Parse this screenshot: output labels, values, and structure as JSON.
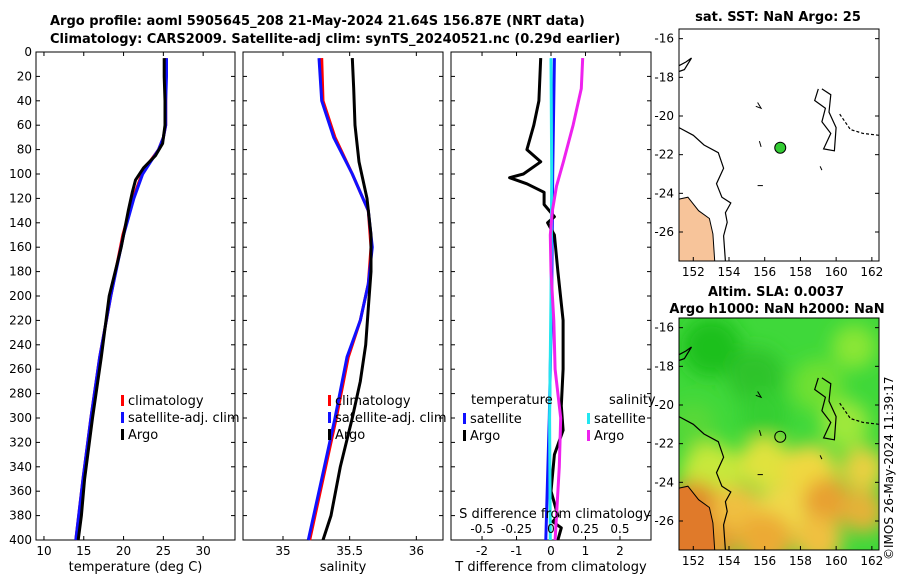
{
  "header": {
    "line1": "Argo profile: aoml 5905645_208 21-May-2024 21.64S 156.87E (NRT data)",
    "line2": "Climatology: CARS2009. Satellite-adj clim: synTS_20240521.nc (0.29d earlier)"
  },
  "credit": "©IMOS 26-May-2024 11:39:17",
  "colors": {
    "climatology": "#ff0000",
    "satellite": "#1010ff",
    "argo": "#000000",
    "sal_satellite": "#22e6f0",
    "sal_argo": "#ee22ee",
    "land": "#f7c49a"
  },
  "chart_data": [
    {
      "id": "temperature",
      "type": "line",
      "xlabel": "temperature (deg C)",
      "ylabel": "",
      "xlim": [
        9,
        34
      ],
      "ylim": [
        400,
        0
      ],
      "xticks": [
        "10",
        "15",
        "20",
        "25",
        "30"
      ],
      "yticks": [
        "0",
        "20",
        "40",
        "60",
        "80",
        "100",
        "120",
        "140",
        "160",
        "180",
        "200",
        "220",
        "240",
        "260",
        "280",
        "300",
        "320",
        "340",
        "360",
        "380",
        "400"
      ],
      "series": [
        {
          "name": "climatology",
          "color": "#ff0000",
          "depth": [
            5,
            20,
            40,
            60,
            70,
            80,
            90,
            100,
            120,
            150,
            200,
            250,
            300,
            350,
            400
          ],
          "values": [
            25.3,
            25.3,
            25.3,
            25.3,
            25.0,
            24.4,
            23.3,
            22.3,
            21.2,
            19.9,
            18.4,
            17.0,
            15.9,
            14.9,
            14.0
          ]
        },
        {
          "name": "satellite-adj. clim",
          "color": "#1010ff",
          "depth": [
            5,
            20,
            40,
            60,
            70,
            80,
            90,
            100,
            120,
            150,
            200,
            250,
            300,
            350,
            400
          ],
          "values": [
            25.4,
            25.4,
            25.3,
            25.3,
            25.0,
            24.4,
            23.4,
            22.4,
            21.3,
            20.0,
            18.4,
            17.0,
            15.9,
            14.9,
            14.0
          ]
        },
        {
          "name": "Argo",
          "color": "#000000",
          "depth": [
            5,
            20,
            40,
            60,
            75,
            85,
            95,
            105,
            115,
            130,
            160,
            200,
            250,
            300,
            350,
            380,
            400
          ],
          "values": [
            25.1,
            25.1,
            25.2,
            25.2,
            24.9,
            24.0,
            22.5,
            21.5,
            21.1,
            20.6,
            19.7,
            18.2,
            17.2,
            16.1,
            15.1,
            14.7,
            14.3
          ]
        }
      ],
      "legend": [
        "climatology",
        "satellite-adj. clim",
        "Argo"
      ]
    },
    {
      "id": "salinity",
      "type": "line",
      "xlabel": "salinity",
      "ylabel": "",
      "xlim": [
        34.7,
        36.2
      ],
      "ylim": [
        400,
        0
      ],
      "xticks": [
        "35",
        "35.5",
        "36"
      ],
      "series": [
        {
          "name": "climatology",
          "color": "#ff0000",
          "depth": [
            5,
            40,
            70,
            100,
            130,
            160,
            190,
            220,
            250,
            300,
            350,
            400
          ],
          "values": [
            35.29,
            35.3,
            35.39,
            35.52,
            35.64,
            35.66,
            35.64,
            35.58,
            35.49,
            35.4,
            35.3,
            35.2
          ]
        },
        {
          "name": "satellite-adj. clim",
          "color": "#1010ff",
          "depth": [
            5,
            40,
            70,
            100,
            130,
            160,
            190,
            220,
            250,
            300,
            350,
            400
          ],
          "values": [
            35.27,
            35.29,
            35.38,
            35.52,
            35.64,
            35.67,
            35.64,
            35.58,
            35.48,
            35.39,
            35.29,
            35.19
          ]
        },
        {
          "name": "Argo",
          "color": "#000000",
          "depth": [
            5,
            30,
            60,
            90,
            120,
            150,
            180,
            210,
            240,
            270,
            300,
            340,
            380,
            400
          ],
          "values": [
            35.52,
            35.53,
            35.54,
            35.57,
            35.63,
            35.66,
            35.66,
            35.64,
            35.62,
            35.58,
            35.52,
            35.43,
            35.36,
            35.3
          ]
        }
      ],
      "legend": [
        "climatology",
        "satellite-adj. clim",
        "Argo"
      ]
    },
    {
      "id": "difference",
      "type": "line",
      "xlabel": "T difference from climatology",
      "xlabel_top": "S difference from climatology",
      "xlim": [
        -2.9,
        2.9
      ],
      "ylim": [
        400,
        0
      ],
      "xticks": [
        "-2",
        "-1",
        "0",
        "1",
        "2"
      ],
      "xticks_top": [
        "-0.5",
        "-0.25",
        "0",
        "0.25",
        "0.5"
      ],
      "series": [
        {
          "name": "temperature satellite",
          "color": "#1010ff",
          "depth": [
            5,
            100,
            200,
            300,
            400
          ],
          "values": [
            0.1,
            0.05,
            0.02,
            -0.05,
            -0.15
          ]
        },
        {
          "name": "temperature Argo",
          "color": "#000000",
          "depth": [
            5,
            40,
            60,
            80,
            90,
            100,
            103,
            108,
            115,
            125,
            135,
            140,
            150,
            180,
            220,
            260,
            290,
            310,
            330,
            360,
            380,
            385,
            390,
            400
          ],
          "values": [
            -0.3,
            -0.35,
            -0.5,
            -0.7,
            -0.3,
            -0.8,
            -1.2,
            -0.7,
            -0.2,
            -0.2,
            0.1,
            -0.1,
            0.1,
            0.2,
            0.35,
            0.35,
            0.3,
            0.35,
            0.1,
            0.0,
            0.2,
            0.05,
            0.3,
            0.2
          ]
        },
        {
          "name": "salinity satellite",
          "color": "#22e6f0",
          "depth": [
            5,
            100,
            200,
            300,
            400
          ],
          "values": [
            0.0,
            0.005,
            0.0,
            -0.01,
            -0.005
          ]
        },
        {
          "name": "salinity Argo",
          "color": "#ee22ee",
          "depth": [
            5,
            30,
            60,
            90,
            110,
            130,
            150,
            180,
            220,
            260,
            300,
            340,
            380,
            400
          ],
          "values": [
            0.23,
            0.22,
            0.16,
            0.09,
            0.04,
            0.01,
            -0.005,
            0.0,
            0.02,
            0.03,
            0.07,
            0.06,
            0.04,
            0.03
          ]
        }
      ],
      "legend_t": {
        "title": "temperature",
        "items": [
          "satellite",
          "Argo"
        ]
      },
      "legend_s": {
        "title": "salinity",
        "items": [
          "satellite",
          "Argo"
        ]
      }
    },
    {
      "id": "sst_map",
      "type": "map",
      "title": "sat. SST: NaN Argo: 25",
      "xlim": [
        151.2,
        162.4
      ],
      "ylim": [
        -27.5,
        -15.5
      ],
      "xticks": [
        "152",
        "154",
        "156",
        "158",
        "160",
        "162"
      ],
      "yticks": [
        "-16",
        "-18",
        "-20",
        "-22",
        "-24",
        "-26"
      ],
      "argo_position": {
        "lon": 156.87,
        "lat": -21.64
      }
    },
    {
      "id": "sla_map",
      "type": "heatmap",
      "title1": "Altim. SLA: 0.0037",
      "title2": "Argo h1000: NaN h2000: NaN",
      "xlim": [
        151.2,
        162.4
      ],
      "ylim": [
        -27.5,
        -15.5
      ],
      "xticks": [
        "152",
        "154",
        "156",
        "158",
        "160",
        "162"
      ],
      "yticks": [
        "-16",
        "-18",
        "-20",
        "-22",
        "-24",
        "-26"
      ],
      "argo_position": {
        "lon": 156.87,
        "lat": -21.64
      }
    }
  ]
}
